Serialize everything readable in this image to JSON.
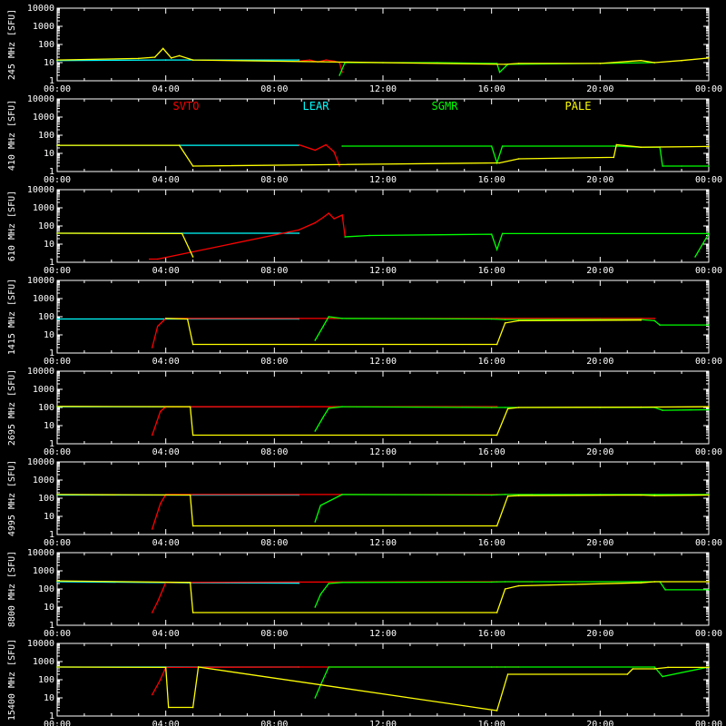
{
  "chart_data": {
    "type": "line",
    "time_ticks": [
      "00:00",
      "04:00",
      "08:00",
      "12:00",
      "16:00",
      "20:00",
      "00:00"
    ],
    "x_range_hours": [
      0,
      24
    ],
    "y_scale": "log",
    "ylim": [
      1,
      10000
    ],
    "y_ticks": [
      "1",
      "10",
      "100",
      "1000",
      "10000"
    ],
    "y_unit": "[SFU]",
    "legend": [
      {
        "name": "SVTO",
        "color": "#ff0000"
      },
      {
        "name": "LEAR",
        "color": "#00ffff"
      },
      {
        "name": "SGMR",
        "color": "#00ff00"
      },
      {
        "name": "PALE",
        "color": "#ffff00"
      }
    ],
    "panels": [
      {
        "label": "245 MHz",
        "series": [
          {
            "color": "#00ffff",
            "pts": [
              [
                0,
                13
              ],
              [
                4,
                14
              ],
              [
                8.9,
                14
              ]
            ]
          },
          {
            "color": "#ff0000",
            "pts": [
              [
                8.9,
                12
              ],
              [
                9.3,
                14
              ],
              [
                9.6,
                11
              ],
              [
                9.9,
                14
              ],
              [
                10.2,
                12
              ],
              [
                10.4,
                10
              ],
              [
                10.5,
                3
              ]
            ]
          },
          {
            "color": "#00ff00",
            "pts": [
              [
                10.4,
                2
              ],
              [
                10.6,
                10
              ],
              [
                12,
                10
              ],
              [
                14,
                10
              ],
              [
                16.2,
                9
              ],
              [
                16.3,
                3
              ],
              [
                16.6,
                8
              ],
              [
                20,
                9
              ],
              [
                22,
                10
              ]
            ]
          },
          {
            "color": "#ffff00",
            "pts": [
              [
                0,
                14
              ],
              [
                3,
                17
              ],
              [
                3.6,
                20
              ],
              [
                3.9,
                60
              ],
              [
                4.2,
                18
              ],
              [
                4.5,
                24
              ],
              [
                5,
                14
              ],
              [
                16.5,
                8
              ],
              [
                17,
                9
              ],
              [
                20,
                9
              ],
              [
                21.5,
                13
              ],
              [
                22,
                10
              ],
              [
                23,
                13
              ],
              [
                24,
                18
              ]
            ]
          }
        ]
      },
      {
        "label": "410 MHz",
        "series": [
          {
            "color": "#00ffff",
            "pts": [
              [
                0,
                28
              ],
              [
                8.9,
                28
              ]
            ]
          },
          {
            "color": "#ff0000",
            "pts": [
              [
                8.9,
                30
              ],
              [
                9.5,
                15
              ],
              [
                9.9,
                30
              ],
              [
                10.2,
                12
              ],
              [
                10.4,
                2
              ]
            ]
          },
          {
            "color": "#00ff00",
            "pts": [
              [
                10.5,
                25
              ],
              [
                16,
                25
              ],
              [
                16.2,
                3
              ],
              [
                16.4,
                25
              ],
              [
                20.5,
                25
              ],
              [
                21.5,
                22
              ],
              [
                22.2,
                22
              ],
              [
                22.3,
                2
              ],
              [
                23,
                2
              ],
              [
                24,
                2
              ]
            ]
          },
          {
            "color": "#ffff00",
            "pts": [
              [
                0,
                28
              ],
              [
                4.5,
                28
              ],
              [
                5,
                2
              ],
              [
                16.3,
                3
              ],
              [
                17,
                5
              ],
              [
                20.5,
                6
              ],
              [
                20.6,
                30
              ],
              [
                21.5,
                22
              ],
              [
                24,
                24
              ]
            ]
          }
        ]
      },
      {
        "label": "610 MHz",
        "series": [
          {
            "color": "#00ffff",
            "pts": [
              [
                0,
                40
              ],
              [
                8.9,
                40
              ]
            ]
          },
          {
            "color": "#ff0000",
            "pts": [
              [
                3.4,
                1.5
              ],
              [
                3.7,
                1.5
              ],
              [
                8.9,
                60
              ],
              [
                9.5,
                150
              ],
              [
                9.8,
                300
              ],
              [
                10,
                500
              ],
              [
                10.2,
                250
              ],
              [
                10.5,
                400
              ],
              [
                10.6,
                30
              ]
            ]
          },
          {
            "color": "#00ff00",
            "pts": [
              [
                10.6,
                25
              ],
              [
                11.5,
                30
              ],
              [
                16,
                35
              ],
              [
                16.2,
                5
              ],
              [
                16.4,
                38
              ],
              [
                24,
                38
              ],
              [
                23.5,
                2
              ]
            ]
          },
          {
            "color": "#ffff00",
            "pts": [
              [
                0,
                40
              ],
              [
                4.6,
                38
              ],
              [
                5,
                2
              ]
            ]
          }
        ]
      },
      {
        "label": "1415 MHz",
        "series": [
          {
            "color": "#00ffff",
            "pts": [
              [
                0,
                75
              ],
              [
                8.9,
                75
              ]
            ]
          },
          {
            "color": "#ff0000",
            "pts": [
              [
                3.5,
                2
              ],
              [
                3.7,
                30
              ],
              [
                4,
                80
              ],
              [
                8.9,
                80
              ],
              [
                10.2,
                80
              ],
              [
                16.2,
                80
              ],
              [
                22,
                80
              ]
            ]
          },
          {
            "color": "#00ff00",
            "pts": [
              [
                9.5,
                5
              ],
              [
                9.8,
                30
              ],
              [
                10,
                100
              ],
              [
                10.5,
                80
              ],
              [
                16,
                75
              ],
              [
                16.5,
                70
              ],
              [
                20,
                70
              ],
              [
                21.5,
                70
              ],
              [
                22,
                60
              ],
              [
                22.2,
                35
              ],
              [
                24,
                35
              ]
            ]
          },
          {
            "color": "#ffff00",
            "pts": [
              [
                4,
                80
              ],
              [
                4.8,
                75
              ],
              [
                5,
                3
              ],
              [
                16.2,
                3
              ],
              [
                16.5,
                45
              ],
              [
                17,
                60
              ],
              [
                21.5,
                65
              ]
            ]
          }
        ]
      },
      {
        "label": "2695 MHz",
        "series": [
          {
            "color": "#00ffff",
            "pts": [
              [
                0,
                110
              ],
              [
                8.9,
                110
              ]
            ]
          },
          {
            "color": "#ff0000",
            "pts": [
              [
                3.5,
                3
              ],
              [
                3.8,
                60
              ],
              [
                4,
                110
              ],
              [
                8.9,
                110
              ],
              [
                16.2,
                110
              ]
            ]
          },
          {
            "color": "#00ff00",
            "pts": [
              [
                9.5,
                5
              ],
              [
                9.8,
                30
              ],
              [
                10,
                90
              ],
              [
                10.5,
                110
              ],
              [
                16,
                100
              ],
              [
                16.5,
                100
              ],
              [
                20,
                100
              ],
              [
                22,
                100
              ],
              [
                22.3,
                70
              ],
              [
                24,
                75
              ]
            ]
          },
          {
            "color": "#ffff00",
            "pts": [
              [
                0,
                115
              ],
              [
                4.9,
                110
              ],
              [
                5,
                3
              ],
              [
                16.2,
                3
              ],
              [
                16.6,
                85
              ],
              [
                17,
                100
              ],
              [
                21.5,
                105
              ],
              [
                24,
                110
              ]
            ]
          }
        ]
      },
      {
        "label": "4995 MHz",
        "series": [
          {
            "color": "#00ffff",
            "pts": [
              [
                0,
                150
              ],
              [
                8.9,
                150
              ]
            ]
          },
          {
            "color": "#ff0000",
            "pts": [
              [
                3.5,
                2
              ],
              [
                3.8,
                50
              ],
              [
                4,
                160
              ],
              [
                8.9,
                160
              ],
              [
                16.2,
                160
              ],
              [
                17.5,
                160
              ]
            ]
          },
          {
            "color": "#00ff00",
            "pts": [
              [
                9.5,
                5
              ],
              [
                9.7,
                40
              ],
              [
                10.5,
                160
              ],
              [
                16,
                150
              ],
              [
                16.5,
                160
              ],
              [
                20,
                160
              ],
              [
                22,
                160
              ],
              [
                24,
                160
              ]
            ]
          },
          {
            "color": "#ffff00",
            "pts": [
              [
                0,
                160
              ],
              [
                4.9,
                150
              ],
              [
                5,
                3
              ],
              [
                16.2,
                3
              ],
              [
                16.6,
                130
              ],
              [
                17,
                140
              ],
              [
                21.5,
                150
              ],
              [
                22,
                140
              ],
              [
                24,
                150
              ]
            ]
          }
        ]
      },
      {
        "label": "8800 MHz",
        "series": [
          {
            "color": "#00ffff",
            "pts": [
              [
                0,
                250
              ],
              [
                4.8,
                220
              ],
              [
                8.9,
                210
              ]
            ]
          },
          {
            "color": "#ff0000",
            "pts": [
              [
                3.5,
                5
              ],
              [
                3.7,
                20
              ],
              [
                3.9,
                100
              ],
              [
                4,
                230
              ],
              [
                8.9,
                240
              ],
              [
                16.2,
                250
              ],
              [
                17.5,
                250
              ]
            ]
          },
          {
            "color": "#00ff00",
            "pts": [
              [
                9.5,
                10
              ],
              [
                9.7,
                50
              ],
              [
                10,
                200
              ],
              [
                10.5,
                230
              ],
              [
                16,
                240
              ],
              [
                16.5,
                250
              ],
              [
                21.5,
                250
              ],
              [
                22.2,
                250
              ],
              [
                22.4,
                90
              ],
              [
                24,
                90
              ]
            ]
          },
          {
            "color": "#ffff00",
            "pts": [
              [
                0,
                280
              ],
              [
                4.9,
                230
              ],
              [
                5,
                5
              ],
              [
                16.2,
                5
              ],
              [
                16.5,
                100
              ],
              [
                17,
                150
              ],
              [
                21.5,
                220
              ],
              [
                22,
                250
              ],
              [
                24,
                250
              ]
            ]
          }
        ]
      },
      {
        "label": "15400 MHz",
        "series": [
          {
            "color": "#00ffff",
            "pts": [
              [
                0,
                500
              ],
              [
                8.9,
                500
              ]
            ]
          },
          {
            "color": "#ff0000",
            "pts": [
              [
                3.5,
                15
              ],
              [
                3.8,
                100
              ],
              [
                4,
                480
              ],
              [
                8.9,
                500
              ],
              [
                16.2,
                500
              ],
              [
                17,
                500
              ]
            ]
          },
          {
            "color": "#00ff00",
            "pts": [
              [
                9.5,
                10
              ],
              [
                9.7,
                50
              ],
              [
                10,
                500
              ],
              [
                16,
                500
              ],
              [
                16.5,
                500
              ],
              [
                22,
                500
              ],
              [
                22.3,
                150
              ],
              [
                24,
                500
              ]
            ]
          },
          {
            "color": "#ffff00",
            "pts": [
              [
                0,
                500
              ],
              [
                4,
                480
              ],
              [
                4.1,
                3
              ],
              [
                5,
                3
              ],
              [
                5.2,
                500
              ],
              [
                16.2,
                2
              ],
              [
                16.6,
                200
              ],
              [
                21,
                200
              ],
              [
                21.2,
                400
              ],
              [
                22,
                400
              ],
              [
                22.5,
                480
              ],
              [
                24,
                480
              ]
            ]
          }
        ]
      }
    ]
  }
}
